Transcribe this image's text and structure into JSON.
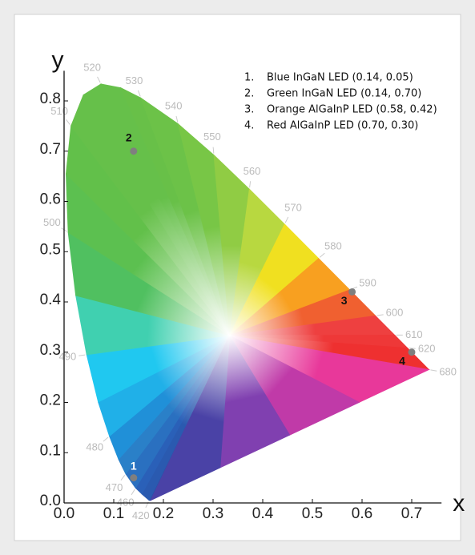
{
  "chart_data": {
    "type": "scatter",
    "x_label": "x",
    "y_label": "y",
    "xlim": [
      0,
      0.76
    ],
    "ylim": [
      0,
      0.86
    ],
    "xticks": [
      {
        "value": 0,
        "label": "0.0"
      },
      0.1,
      0.2,
      0.3,
      0.4,
      0.5,
      0.6,
      0.7
    ],
    "yticks": [
      {
        "value": 0,
        "label": "0.0"
      },
      0.1,
      0.2,
      0.3,
      0.4,
      0.5,
      0.6,
      0.7,
      0.8
    ],
    "series": [
      {
        "color": "#7f7f7f",
        "x": [
          0.14,
          0.14,
          0.58,
          0.7
        ],
        "values": [
          0.05,
          0.7,
          0.42,
          0.3
        ],
        "point_labels": [
          "1",
          "2",
          "3",
          "4"
        ]
      }
    ],
    "legend": [
      {
        "number": "1.",
        "text": "Blue InGaN LED (0.14, 0.05)"
      },
      {
        "number": "2.",
        "text": "Green InGaN LED (0.14, 0.70)"
      },
      {
        "number": "3.",
        "text": "Orange AlGaInP LED (0.58, 0.42)"
      },
      {
        "number": "4.",
        "text": "Red AlGaInP LED (0.70, 0.30)"
      }
    ],
    "spectral_locus": {
      "labels": [
        null,
        "420",
        null,
        "460",
        "470",
        null,
        "480",
        null,
        "490",
        null,
        "500",
        null,
        "510",
        null,
        "520",
        null,
        "530",
        "540",
        "550",
        "560",
        "570",
        "580",
        "590",
        "600",
        "610",
        "620",
        "680"
      ],
      "x": [
        0.1741,
        0.1714,
        0.1566,
        0.144,
        0.1241,
        0.1096,
        0.0913,
        0.0687,
        0.0454,
        0.0235,
        0.0082,
        0.0039,
        0.0139,
        0.0389,
        0.0743,
        0.1142,
        0.1547,
        0.2296,
        0.3016,
        0.3731,
        0.4441,
        0.5125,
        0.5752,
        0.627,
        0.6658,
        0.6915,
        0.7347
      ],
      "y": [
        0.005,
        0.0051,
        0.0177,
        0.0297,
        0.0578,
        0.0868,
        0.1327,
        0.2007,
        0.295,
        0.4127,
        0.5384,
        0.6548,
        0.7502,
        0.812,
        0.8338,
        0.8262,
        0.8059,
        0.7543,
        0.6923,
        0.6245,
        0.5547,
        0.4866,
        0.4242,
        0.3725,
        0.334,
        0.3083,
        0.2653
      ],
      "colors": [
        "#3040a0",
        "#2850a8",
        "#2a5ab0",
        "#2a60b8",
        "#2a70c0",
        "#2a80c8",
        "#2090d8",
        "#20b0e8",
        "#20c8f0",
        "#40d0b0",
        "#50c060",
        "#5cc050",
        "#62c04a",
        "#66c04a",
        "#66c04a",
        "#66c04a",
        "#68c048",
        "#6cc248",
        "#78c646",
        "#90cc44",
        "#b8d840",
        "#f0e020",
        "#f8a020",
        "#f06030",
        "#ee4040",
        "#ee3838",
        "#ee3030"
      ]
    }
  }
}
